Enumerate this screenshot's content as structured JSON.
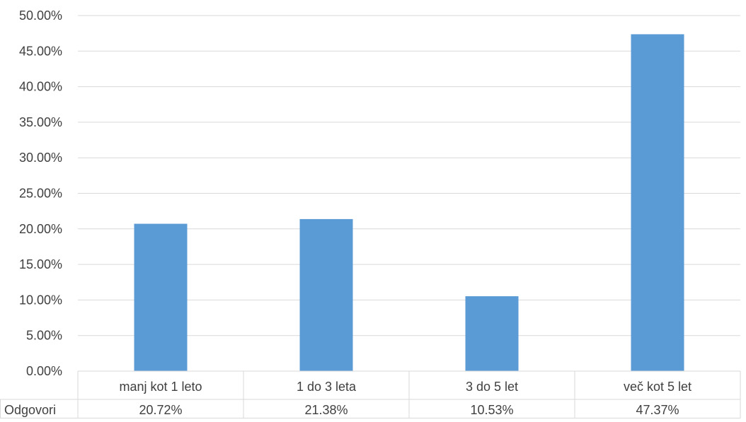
{
  "chart_data": {
    "type": "bar",
    "categories": [
      "manj kot 1 leto",
      "1 do 3 leta",
      "3 do 5 let",
      "več kot 5 let"
    ],
    "series": [
      {
        "name": "Odgovori",
        "values": [
          20.72,
          21.38,
          10.53,
          47.37
        ]
      }
    ],
    "value_labels": [
      "20.72%",
      "21.38%",
      "10.53%",
      "47.37%"
    ],
    "y_ticks": [
      "0.00%",
      "5.00%",
      "10.00%",
      "15.00%",
      "20.00%",
      "25.00%",
      "30.00%",
      "35.00%",
      "40.00%",
      "45.00%",
      "50.00%"
    ],
    "ylim": [
      0,
      50
    ],
    "title": "",
    "xlabel": "",
    "ylabel": "",
    "grid": true,
    "data_table": true,
    "colors": {
      "bar": "#5b9bd5",
      "grid": "#d9d9d9",
      "text": "#404040"
    }
  }
}
